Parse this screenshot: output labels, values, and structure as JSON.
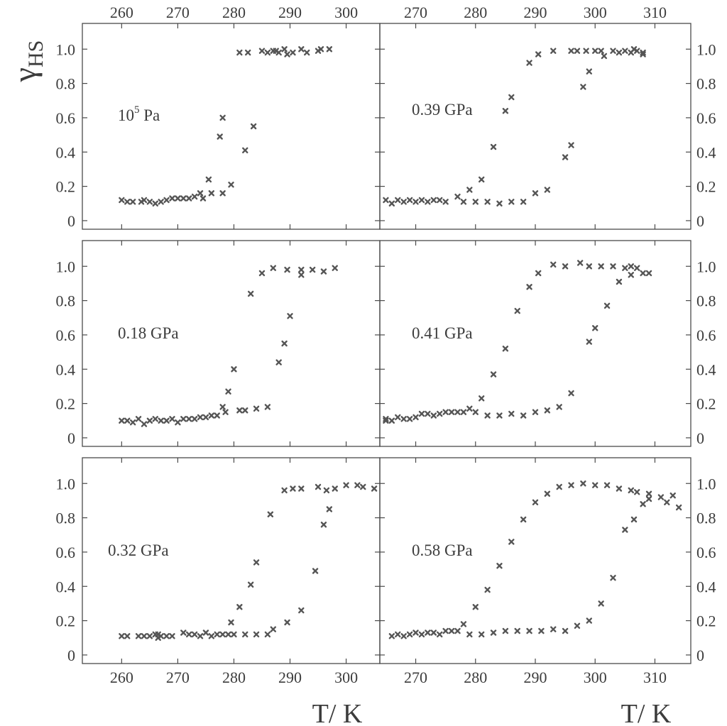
{
  "y_axis_title_main": "γ",
  "y_axis_title_sub": "HS",
  "x_axis_title": "T/ K",
  "colors": {
    "marker": "#555555",
    "axis": "#4a4a4a",
    "text": "#3c3c3c"
  },
  "chart_data": [
    {
      "type": "scatter",
      "panel": "top-left",
      "label_main": "10",
      "label_sup": "5",
      "label_rest": " Pa",
      "xlim": [
        253,
        306
      ],
      "ylim": [
        -0.05,
        1.15
      ],
      "x_ticks": [
        260,
        270,
        280,
        290,
        300
      ],
      "x_tick_labels_top": true,
      "x_tick_labels_bottom": false,
      "y_ticks": [
        0,
        0.2,
        0.4,
        0.6,
        0.8,
        1.0
      ],
      "y_tick_labels": [
        "0",
        "0.2",
        "0.4",
        "0.6",
        "0.8",
        "1.0"
      ],
      "y_labels_side": "left",
      "points": [
        [
          260,
          0.12
        ],
        [
          261,
          0.11
        ],
        [
          262,
          0.11
        ],
        [
          263.5,
          0.11
        ],
        [
          264,
          0.12
        ],
        [
          265,
          0.11
        ],
        [
          266,
          0.1
        ],
        [
          267,
          0.11
        ],
        [
          268,
          0.12
        ],
        [
          269,
          0.13
        ],
        [
          270,
          0.13
        ],
        [
          271,
          0.13
        ],
        [
          272,
          0.13
        ],
        [
          273,
          0.14
        ],
        [
          274,
          0.16
        ],
        [
          274.5,
          0.13
        ],
        [
          275.5,
          0.24
        ],
        [
          276,
          0.16
        ],
        [
          277.5,
          0.49
        ],
        [
          278,
          0.6
        ],
        [
          278,
          0.16
        ],
        [
          279.5,
          0.21
        ],
        [
          281,
          0.98
        ],
        [
          282,
          0.41
        ],
        [
          282.5,
          0.98
        ],
        [
          283.5,
          0.55
        ],
        [
          285,
          0.99
        ],
        [
          286,
          0.98
        ],
        [
          287,
          0.99
        ],
        [
          287.5,
          0.99
        ],
        [
          288,
          0.98
        ],
        [
          289,
          1.0
        ],
        [
          289.5,
          0.97
        ],
        [
          290.5,
          0.98
        ],
        [
          292,
          1.0
        ],
        [
          293,
          0.98
        ],
        [
          295,
          0.99
        ],
        [
          295.5,
          1.0
        ],
        [
          297,
          1.0
        ]
      ]
    },
    {
      "type": "scatter",
      "panel": "top-right",
      "label_main": "0.39 GPa",
      "xlim": [
        264,
        316
      ],
      "ylim": [
        -0.05,
        1.15
      ],
      "x_ticks": [
        270,
        280,
        290,
        300,
        310
      ],
      "x_tick_labels_top": true,
      "x_tick_labels_bottom": false,
      "y_ticks": [
        0,
        0.2,
        0.4,
        0.6,
        0.8,
        1.0
      ],
      "y_tick_labels": [
        "0",
        "0.2",
        "0.4",
        "0.6",
        "0.8",
        "1.0"
      ],
      "y_labels_side": "right",
      "points": [
        [
          265,
          0.12
        ],
        [
          266,
          0.1
        ],
        [
          267,
          0.12
        ],
        [
          268,
          0.11
        ],
        [
          269,
          0.12
        ],
        [
          270,
          0.11
        ],
        [
          271,
          0.12
        ],
        [
          272,
          0.11
        ],
        [
          273,
          0.12
        ],
        [
          274,
          0.12
        ],
        [
          275,
          0.11
        ],
        [
          277,
          0.14
        ],
        [
          278,
          0.11
        ],
        [
          279,
          0.18
        ],
        [
          280,
          0.11
        ],
        [
          281,
          0.24
        ],
        [
          282,
          0.11
        ],
        [
          283,
          0.43
        ],
        [
          284,
          0.1
        ],
        [
          285,
          0.64
        ],
        [
          286,
          0.72
        ],
        [
          286,
          0.11
        ],
        [
          288,
          0.11
        ],
        [
          289,
          0.92
        ],
        [
          290,
          0.16
        ],
        [
          290.5,
          0.97
        ],
        [
          292,
          0.18
        ],
        [
          293,
          0.99
        ],
        [
          295,
          0.37
        ],
        [
          296,
          0.44
        ],
        [
          296,
          0.99
        ],
        [
          297,
          0.99
        ],
        [
          298,
          0.78
        ],
        [
          298.5,
          0.99
        ],
        [
          299,
          0.87
        ],
        [
          300,
          0.99
        ],
        [
          301,
          0.99
        ],
        [
          301.5,
          0.96
        ],
        [
          303,
          0.99
        ],
        [
          304,
          0.98
        ],
        [
          305,
          0.99
        ],
        [
          306,
          0.98
        ],
        [
          306.5,
          1.0
        ],
        [
          307,
          0.99
        ],
        [
          308,
          0.98
        ],
        [
          308,
          0.97
        ]
      ]
    },
    {
      "type": "scatter",
      "panel": "middle-left",
      "label_main": "0.18 GPa",
      "xlim": [
        253,
        306
      ],
      "ylim": [
        -0.05,
        1.15
      ],
      "x_ticks": [
        260,
        270,
        280,
        290,
        300
      ],
      "x_tick_labels_top": false,
      "x_tick_labels_bottom": false,
      "y_ticks": [
        0,
        0.2,
        0.4,
        0.6,
        0.8,
        1.0
      ],
      "y_tick_labels": [
        "0",
        "0.2",
        "0.4",
        "0.6",
        "0.8",
        "1.0"
      ],
      "y_labels_side": "left",
      "points": [
        [
          260,
          0.1
        ],
        [
          261,
          0.1
        ],
        [
          262,
          0.09
        ],
        [
          263,
          0.11
        ],
        [
          264,
          0.08
        ],
        [
          265,
          0.1
        ],
        [
          266,
          0.11
        ],
        [
          267,
          0.1
        ],
        [
          268,
          0.1
        ],
        [
          269,
          0.11
        ],
        [
          270,
          0.09
        ],
        [
          271,
          0.11
        ],
        [
          272,
          0.11
        ],
        [
          273,
          0.11
        ],
        [
          274,
          0.12
        ],
        [
          275,
          0.12
        ],
        [
          276,
          0.13
        ],
        [
          277,
          0.13
        ],
        [
          278,
          0.18
        ],
        [
          278.5,
          0.15
        ],
        [
          279,
          0.27
        ],
        [
          280,
          0.4
        ],
        [
          281,
          0.16
        ],
        [
          282,
          0.16
        ],
        [
          283,
          0.84
        ],
        [
          284,
          0.17
        ],
        [
          285,
          0.96
        ],
        [
          286,
          0.18
        ],
        [
          287,
          0.99
        ],
        [
          288,
          0.44
        ],
        [
          289,
          0.55
        ],
        [
          289.5,
          0.98
        ],
        [
          290,
          0.71
        ],
        [
          292,
          0.98
        ],
        [
          292,
          0.95
        ],
        [
          294,
          0.98
        ],
        [
          296,
          0.97
        ],
        [
          298,
          0.99
        ]
      ]
    },
    {
      "type": "scatter",
      "panel": "middle-right",
      "label_main": "0.41 GPa",
      "xlim": [
        264,
        316
      ],
      "ylim": [
        -0.05,
        1.15
      ],
      "x_ticks": [
        270,
        280,
        290,
        300,
        310
      ],
      "x_tick_labels_top": false,
      "x_tick_labels_bottom": false,
      "y_ticks": [
        0,
        0.2,
        0.4,
        0.6,
        0.8,
        1.0
      ],
      "y_tick_labels": [
        "0",
        "0.2",
        "0.4",
        "0.6",
        "0.8",
        "1.0"
      ],
      "y_labels_side": "right",
      "points": [
        [
          265,
          0.11
        ],
        [
          265,
          0.1
        ],
        [
          266,
          0.1
        ],
        [
          267,
          0.12
        ],
        [
          268,
          0.11
        ],
        [
          269,
          0.11
        ],
        [
          270,
          0.12
        ],
        [
          271,
          0.14
        ],
        [
          272,
          0.14
        ],
        [
          273,
          0.13
        ],
        [
          274,
          0.14
        ],
        [
          275,
          0.15
        ],
        [
          276,
          0.15
        ],
        [
          277,
          0.15
        ],
        [
          278,
          0.15
        ],
        [
          279,
          0.17
        ],
        [
          280,
          0.15
        ],
        [
          281,
          0.23
        ],
        [
          282,
          0.13
        ],
        [
          283,
          0.37
        ],
        [
          284,
          0.13
        ],
        [
          285,
          0.52
        ],
        [
          286,
          0.14
        ],
        [
          287,
          0.74
        ],
        [
          288,
          0.13
        ],
        [
          289,
          0.88
        ],
        [
          290,
          0.15
        ],
        [
          290.5,
          0.96
        ],
        [
          292,
          0.16
        ],
        [
          293,
          1.01
        ],
        [
          294,
          0.18
        ],
        [
          295,
          1.0
        ],
        [
          296,
          0.26
        ],
        [
          297.5,
          1.02
        ],
        [
          299,
          1.0
        ],
        [
          299,
          0.56
        ],
        [
          300,
          0.64
        ],
        [
          301,
          1.0
        ],
        [
          302,
          0.77
        ],
        [
          303,
          1.0
        ],
        [
          304,
          0.91
        ],
        [
          305,
          0.99
        ],
        [
          306,
          1.0
        ],
        [
          306,
          0.95
        ],
        [
          307,
          0.99
        ],
        [
          308,
          0.96
        ],
        [
          309,
          0.96
        ]
      ]
    },
    {
      "type": "scatter",
      "panel": "bottom-left",
      "label_main": "0.32 GPa",
      "xlim": [
        253,
        306
      ],
      "ylim": [
        -0.05,
        1.15
      ],
      "x_ticks": [
        260,
        270,
        280,
        290,
        300
      ],
      "x_tick_labels_top": false,
      "x_tick_labels_bottom": true,
      "y_ticks": [
        0,
        0.2,
        0.4,
        0.6,
        0.8,
        1.0
      ],
      "y_tick_labels": [
        "0",
        "0.2",
        "0.4",
        "0.6",
        "0.8",
        "1.0"
      ],
      "y_labels_side": "left",
      "points": [
        [
          260,
          0.11
        ],
        [
          261,
          0.11
        ],
        [
          263,
          0.11
        ],
        [
          264,
          0.11
        ],
        [
          265,
          0.11
        ],
        [
          266,
          0.12
        ],
        [
          266.5,
          0.1
        ],
        [
          266.5,
          0.12
        ],
        [
          267,
          0.11
        ],
        [
          268,
          0.11
        ],
        [
          269,
          0.11
        ],
        [
          271,
          0.13
        ],
        [
          272,
          0.12
        ],
        [
          273,
          0.12
        ],
        [
          274,
          0.11
        ],
        [
          275,
          0.13
        ],
        [
          276,
          0.11
        ],
        [
          277,
          0.12
        ],
        [
          278,
          0.12
        ],
        [
          279,
          0.12
        ],
        [
          279.5,
          0.19
        ],
        [
          280,
          0.12
        ],
        [
          281,
          0.28
        ],
        [
          282,
          0.12
        ],
        [
          283,
          0.41
        ],
        [
          284,
          0.54
        ],
        [
          284,
          0.12
        ],
        [
          286,
          0.12
        ],
        [
          286.5,
          0.82
        ],
        [
          287,
          0.15
        ],
        [
          289,
          0.96
        ],
        [
          289.5,
          0.19
        ],
        [
          290.5,
          0.97
        ],
        [
          292,
          0.26
        ],
        [
          292,
          0.97
        ],
        [
          294.5,
          0.49
        ],
        [
          295,
          0.98
        ],
        [
          296,
          0.76
        ],
        [
          296.5,
          0.96
        ],
        [
          297,
          0.85
        ],
        [
          298,
          0.97
        ],
        [
          300,
          0.99
        ],
        [
          302,
          0.99
        ],
        [
          303,
          0.98
        ],
        [
          305,
          0.97
        ]
      ]
    },
    {
      "type": "scatter",
      "panel": "bottom-right",
      "label_main": "0.58 GPa",
      "xlim": [
        264,
        316
      ],
      "ylim": [
        -0.05,
        1.15
      ],
      "x_ticks": [
        270,
        280,
        290,
        300,
        310
      ],
      "x_tick_labels_top": false,
      "x_tick_labels_bottom": true,
      "y_ticks": [
        0,
        0.2,
        0.4,
        0.6,
        0.8,
        1.0
      ],
      "y_tick_labels": [
        "0",
        "0.2",
        "0.4",
        "0.6",
        "0.8",
        "1.0"
      ],
      "y_labels_side": "right",
      "points": [
        [
          266,
          0.11
        ],
        [
          267,
          0.12
        ],
        [
          268,
          0.11
        ],
        [
          269,
          0.12
        ],
        [
          270,
          0.13
        ],
        [
          271,
          0.12
        ],
        [
          272,
          0.13
        ],
        [
          273,
          0.13
        ],
        [
          274,
          0.12
        ],
        [
          275,
          0.14
        ],
        [
          276,
          0.14
        ],
        [
          277,
          0.14
        ],
        [
          278,
          0.18
        ],
        [
          279,
          0.12
        ],
        [
          280,
          0.28
        ],
        [
          281,
          0.12
        ],
        [
          282,
          0.38
        ],
        [
          283,
          0.13
        ],
        [
          284,
          0.52
        ],
        [
          285,
          0.14
        ],
        [
          286,
          0.66
        ],
        [
          287,
          0.14
        ],
        [
          288,
          0.79
        ],
        [
          289,
          0.14
        ],
        [
          290,
          0.89
        ],
        [
          291,
          0.14
        ],
        [
          292,
          0.94
        ],
        [
          293,
          0.15
        ],
        [
          294,
          0.98
        ],
        [
          295,
          0.14
        ],
        [
          296,
          0.99
        ],
        [
          297,
          0.17
        ],
        [
          298,
          1.0
        ],
        [
          299,
          0.2
        ],
        [
          300,
          0.99
        ],
        [
          301,
          0.3
        ],
        [
          302,
          0.99
        ],
        [
          303,
          0.45
        ],
        [
          304,
          0.97
        ],
        [
          305,
          0.73
        ],
        [
          306,
          0.96
        ],
        [
          306.5,
          0.79
        ],
        [
          307,
          0.95
        ],
        [
          308,
          0.88
        ],
        [
          309,
          0.94
        ],
        [
          309,
          0.91
        ],
        [
          311,
          0.92
        ],
        [
          312,
          0.89
        ],
        [
          313,
          0.93
        ],
        [
          314,
          0.86
        ]
      ]
    }
  ]
}
